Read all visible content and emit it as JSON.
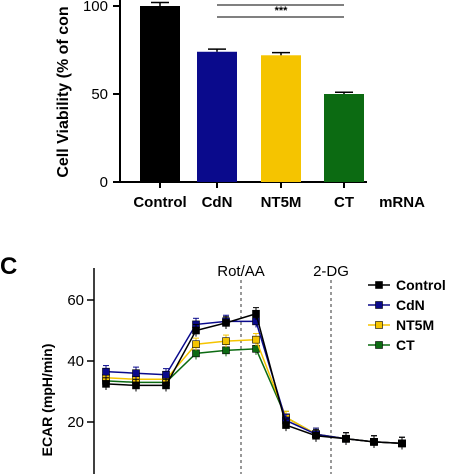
{
  "chart_data": [
    {
      "type": "bar",
      "ylabel": "Cell Viability (% of con",
      "xlabel": "mRNA",
      "categories": [
        "Control",
        "CdN",
        "NT5M",
        "CT"
      ],
      "values": [
        100,
        74,
        72,
        50
      ],
      "errors": [
        2,
        1.5,
        1.5,
        1
      ],
      "colors": [
        "#000000",
        "#0a0a8c",
        "#f5c400",
        "#0c6b12"
      ],
      "yticks": [
        0,
        50,
        100
      ],
      "ylim": [
        0,
        104
      ],
      "significance": [
        {
          "from": "CdN",
          "to": "CT",
          "label": "***"
        },
        {
          "from": "Control",
          "to": "CT",
          "label": "***"
        }
      ]
    },
    {
      "type": "line",
      "panel_label": "C",
      "ylabel": "ECAR (mpH/min)",
      "yticks": [
        20,
        40,
        60
      ],
      "ylim": [
        15,
        64
      ],
      "annotations": [
        {
          "label": "Rot/AA",
          "after_index": 5
        },
        {
          "label": "2-DG",
          "after_index": 8
        }
      ],
      "series": [
        {
          "name": "Control",
          "color": "#000000",
          "marker": "square",
          "values": [
            32.5,
            32,
            32,
            50,
            52.5,
            55.5,
            19,
            15.5,
            14.5,
            13.5,
            13
          ]
        },
        {
          "name": "CdN",
          "color": "#0a0a8c",
          "marker": "square",
          "values": [
            36.5,
            36,
            35.5,
            52,
            53,
            53,
            20.5,
            16,
            14.5,
            13.5,
            13
          ]
        },
        {
          "name": "NT5M",
          "color": "#f5c400",
          "marker": "square",
          "values": [
            34.5,
            34,
            34,
            45.5,
            46.5,
            47,
            21.5,
            16,
            14.5,
            13.5,
            13
          ]
        },
        {
          "name": "CT",
          "color": "#0c6b12",
          "marker": "square",
          "values": [
            33.5,
            33,
            33,
            42.5,
            43.5,
            44,
            21.5,
            16,
            14.5,
            13.5,
            13
          ]
        }
      ],
      "error_size": 2
    }
  ]
}
